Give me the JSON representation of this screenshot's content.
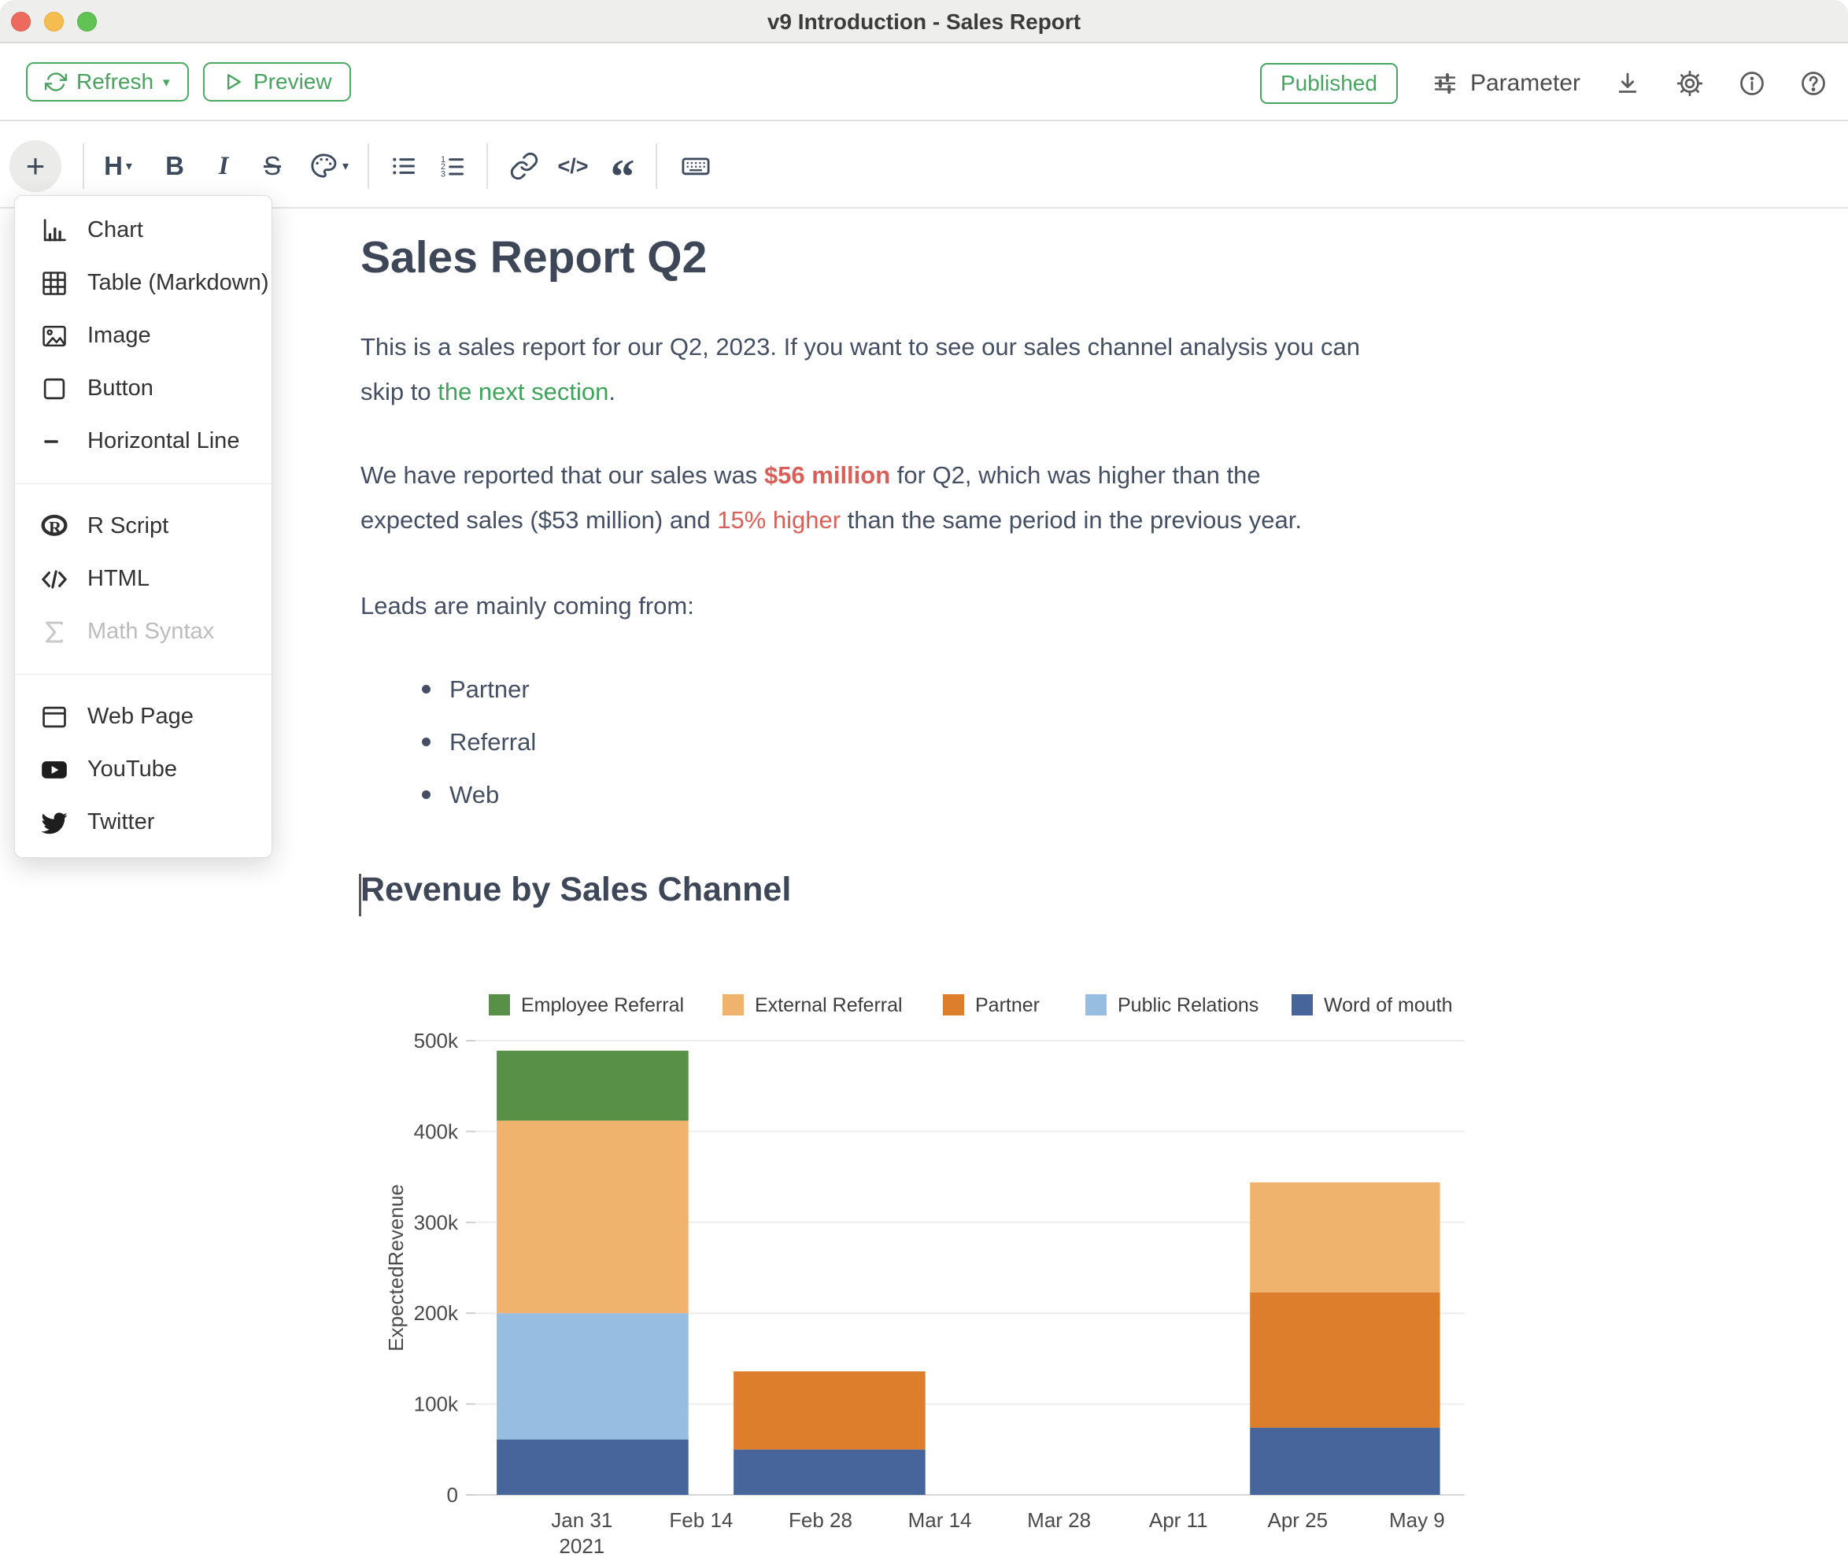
{
  "window": {
    "title": "v9 Introduction - Sales Report"
  },
  "colors": {
    "accent_green": "#4cab63",
    "link_green": "#3fa45a",
    "alert_red": "#da5f58",
    "heading_text": "#3d4758",
    "body_text": "#454f63",
    "toolbar_icon": "#3d4a5e"
  },
  "toolbar": {
    "refresh_label": "Refresh",
    "preview_label": "Preview",
    "published_label": "Published",
    "parameter_label": "Parameter"
  },
  "format_toolbar": {
    "plus_label": "+",
    "heading_label": "H",
    "bold_label": "B",
    "italic_label": "I",
    "strike_label": "S",
    "code_label": "</>",
    "quote_label": "“"
  },
  "insert_menu": {
    "items": [
      {
        "icon": "chart-icon",
        "label": "Chart",
        "disabled": false
      },
      {
        "icon": "table-icon",
        "label": "Table (Markdown)",
        "disabled": false
      },
      {
        "icon": "image-icon",
        "label": "Image",
        "disabled": false
      },
      {
        "icon": "button-icon",
        "label": "Button",
        "disabled": false
      },
      {
        "icon": "horizontal-line-icon",
        "label": "Horizontal Line",
        "disabled": false
      },
      {
        "icon": "r-script-icon",
        "label": "R Script",
        "disabled": false
      },
      {
        "icon": "html-icon",
        "label": "HTML",
        "disabled": false
      },
      {
        "icon": "math-icon",
        "label": "Math Syntax",
        "disabled": true
      },
      {
        "icon": "web-page-icon",
        "label": "Web Page",
        "disabled": false
      },
      {
        "icon": "youtube-icon",
        "label": "YouTube",
        "disabled": false
      },
      {
        "icon": "twitter-icon",
        "label": "Twitter",
        "disabled": false
      }
    ]
  },
  "document": {
    "h1": "Sales Report Q2",
    "p1_segments": [
      {
        "text": "This is a sales report for our Q2, 2023. If you want to see our sales channel analysis you can\nskip to ",
        "style": "normal"
      },
      {
        "text": "the next section",
        "style": "link"
      },
      {
        "text": ".",
        "style": "normal"
      }
    ],
    "p2_segments": [
      {
        "text": "We have reported that our sales was ",
        "style": "normal"
      },
      {
        "text": "$56 million",
        "style": "red-bold"
      },
      {
        "text": " for Q2, which was higher than the\nexpected sales ($53 million) and ",
        "style": "normal"
      },
      {
        "text": "15% higher",
        "style": "red"
      },
      {
        "text": " than the same period in the previous year.",
        "style": "normal"
      }
    ],
    "p3": "Leads are mainly coming from:",
    "bullets": [
      "Partner",
      "Referral",
      "Web"
    ],
    "h2": "Revenue by Sales Channel"
  },
  "chart_data": {
    "type": "bar",
    "stacked": true,
    "title": "",
    "xlabel": "",
    "ylabel": "ExpectedRevenue",
    "grid": "horizontal",
    "legend_position": "top",
    "y_max": 500000,
    "y_ticks": [
      0,
      100000,
      200000,
      300000,
      400000,
      500000
    ],
    "y_tick_labels": [
      "0",
      "100k",
      "200k",
      "300k",
      "400k",
      "500k"
    ],
    "x_domain_days": [
      -12.5,
      103.6
    ],
    "x_ticks": [
      {
        "day": 0,
        "label": "Jan 31",
        "sublabel": "2021"
      },
      {
        "day": 14,
        "label": "Feb 14",
        "sublabel": ""
      },
      {
        "day": 28,
        "label": "Feb 28",
        "sublabel": ""
      },
      {
        "day": 42,
        "label": "Mar 14",
        "sublabel": ""
      },
      {
        "day": 56,
        "label": "Mar 28",
        "sublabel": ""
      },
      {
        "day": 70,
        "label": "Apr 11",
        "sublabel": ""
      },
      {
        "day": 84,
        "label": "Apr 25",
        "sublabel": ""
      },
      {
        "day": 98,
        "label": "May 9",
        "sublabel": ""
      }
    ],
    "legend": [
      "Employee Referral",
      "External Referral",
      "Partner",
      "Public Relations",
      "Word of mouth"
    ],
    "series_colors": {
      "Employee Referral": "#579046",
      "External Referral": "#f0b36e",
      "Partner": "#dc7e2b",
      "Public Relations": "#97bde0",
      "Word of mouth": "#47659a"
    },
    "bars": [
      {
        "x_days": [
          -10,
          12.5
        ],
        "segments": [
          {
            "name": "Word of mouth",
            "value": 61000
          },
          {
            "name": "Public Relations",
            "value": 139000
          },
          {
            "name": "External Referral",
            "value": 212000
          },
          {
            "name": "Employee Referral",
            "value": 77000
          }
        ]
      },
      {
        "x_days": [
          17.8,
          40.3
        ],
        "segments": [
          {
            "name": "Word of mouth",
            "value": 50000
          },
          {
            "name": "Partner",
            "value": 86000
          }
        ]
      },
      {
        "x_days": [
          78.4,
          100.7
        ],
        "segments": [
          {
            "name": "Word of mouth",
            "value": 74000
          },
          {
            "name": "Partner",
            "value": 149000
          },
          {
            "name": "External Referral",
            "value": 121000
          }
        ]
      }
    ]
  }
}
